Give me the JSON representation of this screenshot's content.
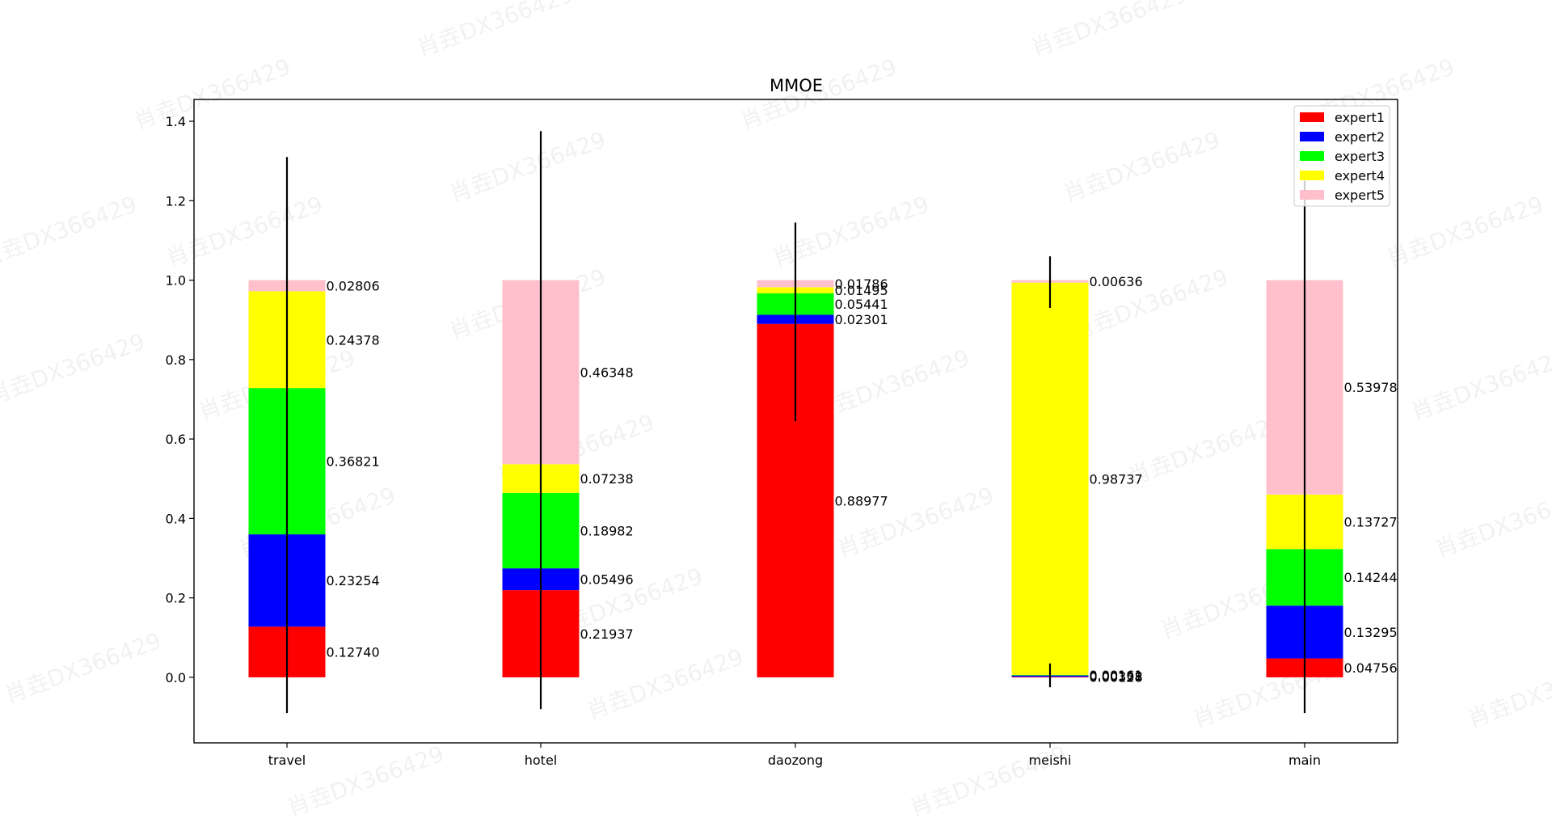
{
  "chart_data": {
    "type": "bar",
    "stacked": true,
    "title": "MMOE",
    "categories": [
      "travel",
      "hotel",
      "daozong",
      "meishi",
      "main"
    ],
    "ylim": [
      -0.165,
      1.455
    ],
    "yticks": [
      "0.0",
      "0.2",
      "0.4",
      "0.6",
      "0.8",
      "1.0",
      "1.2",
      "1.4"
    ],
    "ytick_values": [
      0,
      0.2,
      0.4,
      0.6,
      0.8,
      1.0,
      1.2,
      1.4
    ],
    "grid": false,
    "legend_position": "top-right",
    "series": [
      {
        "name": "expert1",
        "color": "#ff0000",
        "values": [
          0.1274,
          0.21937,
          0.88977,
          0.00128,
          0.04756
        ],
        "labels": [
          "0.12740",
          "0.21937",
          "0.88977",
          "0.00128",
          "0.04756"
        ]
      },
      {
        "name": "expert2",
        "color": "#0000ff",
        "values": [
          0.23254,
          0.05496,
          0.02301,
          0.00338,
          0.13295
        ],
        "labels": [
          "0.23254",
          "0.05496",
          "0.02301",
          "0.00338",
          "0.13295"
        ]
      },
      {
        "name": "expert3",
        "color": "#00ff00",
        "values": [
          0.36821,
          0.18982,
          0.05441,
          0.00161,
          0.14244
        ],
        "labels": [
          "0.36821",
          "0.18982",
          "0.05441",
          "0.00161",
          "0.14244"
        ]
      },
      {
        "name": "expert4",
        "color": "#ffff00",
        "values": [
          0.24378,
          0.07238,
          0.01495,
          0.98737,
          0.13727
        ],
        "labels": [
          "0.24378",
          "0.07238",
          "0.01495",
          "0.98737",
          "0.13727"
        ]
      },
      {
        "name": "expert5",
        "color": "#ffc0cb",
        "values": [
          0.02806,
          0.46348,
          0.01786,
          0.00636,
          0.53978
        ],
        "labels": [
          "0.02806",
          "0.46348",
          "0.01786",
          "0.00636",
          "0.53978"
        ]
      }
    ],
    "error_bars": [
      {
        "category": "travel",
        "low": -0.09,
        "high": 1.31
      },
      {
        "category": "hotel",
        "low": -0.08,
        "high": 1.375
      },
      {
        "category": "daozong",
        "low": 0.645,
        "high": 1.145
      },
      {
        "category": "meishi",
        "low": -0.025,
        "high": 1.06
      },
      {
        "category": "main",
        "low": -0.09,
        "high": 1.25
      }
    ],
    "error_bar_segments": [
      {
        "category": "meishi",
        "low": 0.93,
        "high": 1.06
      },
      {
        "category": "meishi",
        "low": -0.025,
        "high": 0.035
      }
    ]
  },
  "watermark": "肖垚DX366429"
}
